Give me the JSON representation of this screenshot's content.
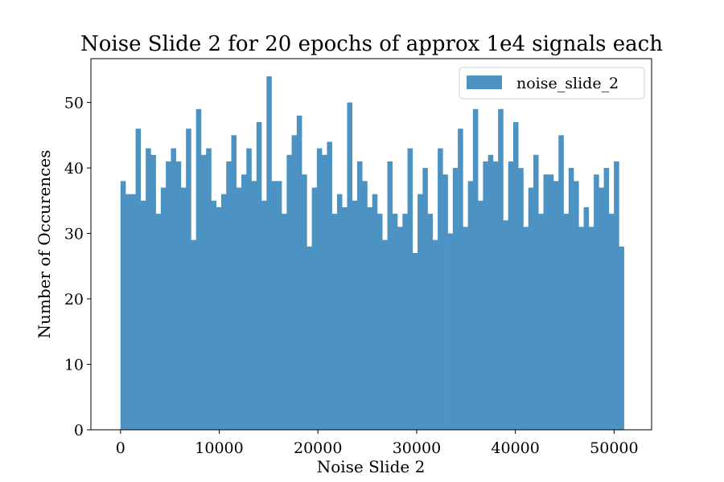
{
  "chart_data": {
    "type": "bar",
    "title": "Noise Slide 2 for 20 epochs of approx 1e4 signals each",
    "xlabel": "Noise Slide 2",
    "ylabel": "Number of Occurences",
    "x_range": [
      -3000,
      53800
    ],
    "ylim": [
      0,
      56.7
    ],
    "x_ticks": [
      0,
      10000,
      20000,
      30000,
      40000,
      50000
    ],
    "x_tick_labels": [
      "0",
      "10000",
      "20000",
      "30000",
      "40000",
      "50000"
    ],
    "y_ticks": [
      0,
      10,
      20,
      30,
      40,
      50
    ],
    "y_tick_labels": [
      "0",
      "10",
      "20",
      "30",
      "40",
      "50"
    ],
    "grid": false,
    "legend_position": "top-right",
    "bar_color": "#4c93c3",
    "series": [
      {
        "name": "noise_slide_2",
        "bin_start": 0,
        "bin_end": 51000,
        "values": [
          38,
          36,
          36,
          46,
          35,
          43,
          42,
          33,
          37,
          41,
          43,
          41,
          37,
          46,
          29,
          49,
          42,
          43,
          35,
          34,
          36,
          41,
          45,
          37,
          39,
          43,
          38,
          47,
          35,
          54,
          38,
          38,
          33,
          42,
          45,
          48,
          39,
          28,
          37,
          43,
          42,
          44,
          33,
          36,
          34,
          50,
          35,
          41,
          38,
          34,
          36,
          33,
          29,
          41,
          33,
          31,
          33,
          43,
          27,
          36,
          40,
          33,
          29,
          43,
          39,
          30,
          40,
          46,
          31,
          38,
          49,
          35,
          41,
          42,
          41,
          49,
          32,
          41,
          47,
          40,
          31,
          37,
          42,
          33,
          39,
          39,
          38,
          45,
          33,
          40,
          38,
          31,
          34,
          31,
          39,
          37,
          40,
          33,
          41,
          28
        ]
      }
    ]
  }
}
